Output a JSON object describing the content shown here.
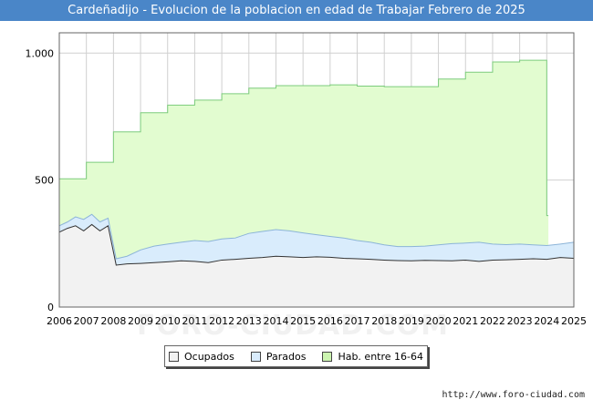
{
  "title": "Cardeñadijo - Evolucion de la poblacion en edad de Trabajar Febrero de 2025",
  "watermark": "FORO-CIUDAD.COM",
  "source": "http://www.foro-ciudad.com",
  "colors": {
    "ocupados_fill": "#f2f2f2",
    "ocupados_line": "#333333",
    "parados_fill": "#d9ecfc",
    "parados_line": "#8cb4d8",
    "hab_fill": "#e2fcd0",
    "hab_line": "#7ccc7c"
  },
  "legend": [
    {
      "label": "Ocupados",
      "color": "#f2f2f2"
    },
    {
      "label": "Parados",
      "color": "#d9ecfc"
    },
    {
      "label": "Hab. entre 16-64",
      "color": "#ccf5b0"
    }
  ],
  "chart_data": {
    "type": "area",
    "title": "Cardeñadijo - Evolucion de la poblacion en edad de Trabajar Febrero de 2025",
    "xlabel": "",
    "ylabel": "",
    "xlim": [
      2006,
      2025
    ],
    "ylim": [
      0,
      1080
    ],
    "yticks": [
      0,
      500,
      1000
    ],
    "ytick_labels": [
      "0",
      "500",
      "1.000"
    ],
    "xticks": [
      2006,
      2007,
      2008,
      2009,
      2010,
      2011,
      2012,
      2013,
      2014,
      2015,
      2016,
      2017,
      2018,
      2019,
      2020,
      2021,
      2022,
      2023,
      2024,
      2025
    ],
    "grid": true,
    "legend_position": "bottom",
    "series": [
      {
        "name": "Hab. entre 16-64",
        "step": true,
        "x": [
          2006,
          2007,
          2008,
          2009,
          2010,
          2011,
          2012,
          2013,
          2014,
          2015,
          2016,
          2017,
          2018,
          2019,
          2020,
          2021,
          2022,
          2023,
          2024
        ],
        "values": [
          505,
          570,
          690,
          765,
          795,
          815,
          840,
          862,
          872,
          872,
          875,
          870,
          868,
          868,
          898,
          925,
          965,
          972,
          360
        ]
      },
      {
        "name": "Parados",
        "x": [
          2006,
          2006.3,
          2006.6,
          2006.9,
          2007.2,
          2007.5,
          2007.8,
          2008.1,
          2008.5,
          2009,
          2009.5,
          2010,
          2010.5,
          2011,
          2011.5,
          2012,
          2012.5,
          2013,
          2013.5,
          2014,
          2014.5,
          2015,
          2015.5,
          2016,
          2016.5,
          2017,
          2017.5,
          2018,
          2018.5,
          2019,
          2019.5,
          2020,
          2020.5,
          2021,
          2021.5,
          2022,
          2022.5,
          2023,
          2023.5,
          2024,
          2024.5,
          2025
        ],
        "values": [
          320,
          335,
          355,
          345,
          365,
          335,
          350,
          190,
          200,
          225,
          240,
          248,
          255,
          262,
          258,
          268,
          272,
          290,
          298,
          305,
          300,
          292,
          285,
          278,
          272,
          262,
          255,
          245,
          238,
          238,
          240,
          245,
          250,
          252,
          255,
          248,
          246,
          248,
          245,
          242,
          248,
          255
        ]
      },
      {
        "name": "Ocupados",
        "x": [
          2006,
          2006.3,
          2006.6,
          2006.9,
          2007.2,
          2007.5,
          2007.8,
          2008.1,
          2008.5,
          2009,
          2009.5,
          2010,
          2010.5,
          2011,
          2011.5,
          2012,
          2012.5,
          2013,
          2013.5,
          2014,
          2014.5,
          2015,
          2015.5,
          2016,
          2016.5,
          2017,
          2017.5,
          2018,
          2018.5,
          2019,
          2019.5,
          2020,
          2020.5,
          2021,
          2021.5,
          2022,
          2022.5,
          2023,
          2023.5,
          2024,
          2024.5,
          2025
        ],
        "values": [
          295,
          310,
          320,
          300,
          325,
          300,
          320,
          165,
          170,
          172,
          175,
          178,
          182,
          180,
          175,
          185,
          188,
          192,
          195,
          200,
          198,
          195,
          198,
          196,
          192,
          190,
          188,
          185,
          183,
          182,
          184,
          183,
          182,
          185,
          180,
          185,
          186,
          188,
          190,
          188,
          195,
          192
        ]
      }
    ]
  }
}
